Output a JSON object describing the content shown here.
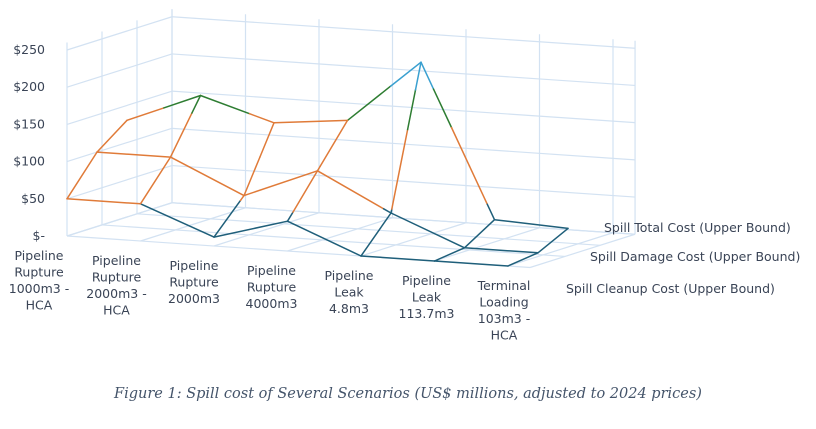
{
  "caption": "Figure 1: Spill cost of Several Scenarios (US$ millions, adjusted to 2024 prices)",
  "chart_data": {
    "type": "surface-3d",
    "title": "",
    "ylabel": "US$ millions",
    "ylim": [
      0,
      250
    ],
    "y_ticks": [
      "$-",
      "$50",
      "$100",
      "$150",
      "$200",
      "$250"
    ],
    "y_tick_values": [
      0,
      50,
      100,
      150,
      200,
      250
    ],
    "categories": [
      [
        "Pipeline",
        "Rupture",
        "1000m3 -",
        "HCA"
      ],
      [
        "Pipeline",
        "Rupture",
        "2000m3 -",
        "HCA"
      ],
      [
        "Pipeline",
        "Rupture",
        "2000m3"
      ],
      [
        "Pipeline",
        "Rupture",
        "4000m3"
      ],
      [
        "Pipeline",
        "Leak",
        "4.8m3"
      ],
      [
        "Pipeline",
        "Leak",
        "113.7m3"
      ],
      [
        "Terminal",
        "Loading",
        "103m3 -",
        "HCA"
      ]
    ],
    "series": [
      {
        "name": "Spill Cleanup Cost (Upper Bound)",
        "values": [
          50,
          50,
          12,
          40,
          0,
          0,
          0
        ]
      },
      {
        "name": "Spill Damage Cost (Upper Bound)",
        "values": [
          100,
          100,
          55,
          95,
          45,
          5,
          5
        ]
      },
      {
        "name": "Spill Total Cost (Upper Bound)",
        "values": [
          130,
          170,
          140,
          150,
          235,
          30,
          25
        ]
      }
    ],
    "band_colors": [
      {
        "range": [
          0,
          50
        ],
        "color": "#1f5f7a"
      },
      {
        "range": [
          50,
          100
        ],
        "color": "#e07b39"
      },
      {
        "range": [
          100,
          150
        ],
        "color": "#e07b39"
      },
      {
        "range": [
          150,
          200
        ],
        "color": "#2e7d32"
      },
      {
        "range": [
          200,
          250
        ],
        "color": "#3aa0d0"
      },
      {
        "range": [
          250,
          300
        ],
        "color": "#9c2a8c"
      }
    ],
    "grid": true,
    "legend": "depth-axis-right"
  }
}
